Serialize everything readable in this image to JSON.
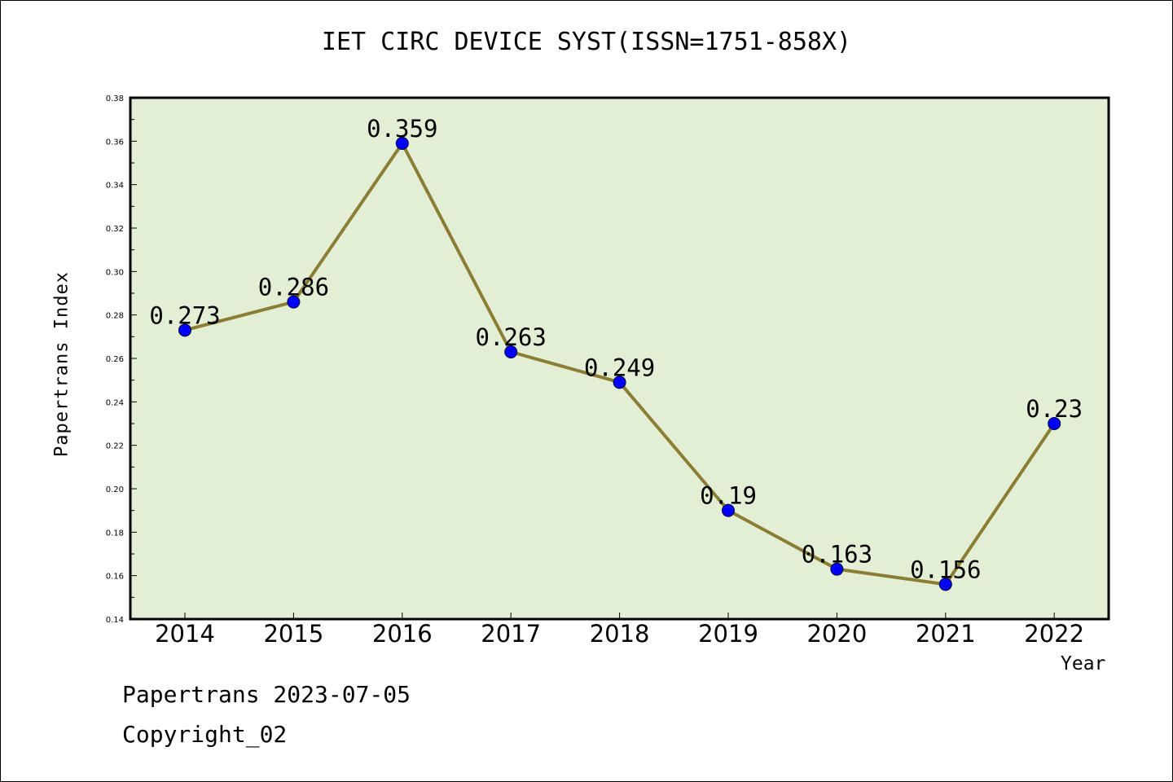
{
  "title": "IET CIRC DEVICE SYST(ISSN=1751-858X)",
  "footer": {
    "line1": "Papertrans 2023-07-05",
    "line2": "Copyright_02"
  },
  "colors": {
    "plot_background": "#e2efd5",
    "line": "#8b7d34",
    "marker": "#0000ff",
    "axis": "#000000"
  },
  "chart_data": {
    "type": "line",
    "title": "IET CIRC DEVICE SYST(ISSN=1751-858X)",
    "xlabel": "Year",
    "ylabel": "Papertrans Index",
    "categories": [
      "2014",
      "2015",
      "2016",
      "2017",
      "2018",
      "2019",
      "2020",
      "2021",
      "2022"
    ],
    "values": [
      0.273,
      0.286,
      0.359,
      0.263,
      0.249,
      0.19,
      0.163,
      0.156,
      0.23
    ],
    "data_labels": [
      "0.273",
      "0.286",
      "0.359",
      "0.263",
      "0.249",
      "0.19",
      "0.163",
      "0.156",
      "0.23"
    ],
    "ylim": [
      0.14,
      0.38
    ],
    "yticks": [
      "0.14",
      "0.16",
      "0.18",
      "0.20",
      "0.22",
      "0.24",
      "0.26",
      "0.28",
      "0.30",
      "0.32",
      "0.34",
      "0.36",
      "0.38"
    ],
    "grid": false,
    "legend": "none"
  }
}
